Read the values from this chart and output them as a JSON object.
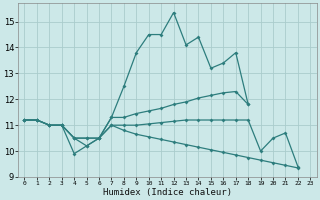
{
  "xlabel": "Humidex (Indice chaleur)",
  "bg_color": "#cce8e8",
  "grid_color": "#aacccc",
  "line_color": "#2d7d7d",
  "xlim": [
    -0.5,
    23.5
  ],
  "ylim": [
    9.0,
    15.7
  ],
  "yticks": [
    9,
    10,
    11,
    12,
    13,
    14,
    15
  ],
  "xticks": [
    0,
    1,
    2,
    3,
    4,
    5,
    6,
    7,
    8,
    9,
    10,
    11,
    12,
    13,
    14,
    15,
    16,
    17,
    18,
    19,
    20,
    21,
    22,
    23
  ],
  "lines": [
    {
      "x": [
        0,
        1,
        2,
        3,
        4,
        5,
        6,
        7,
        8,
        9,
        10,
        11,
        12,
        13,
        14,
        15,
        16,
        17,
        18
      ],
      "y": [
        11.2,
        11.2,
        11.0,
        11.0,
        10.5,
        10.2,
        10.5,
        11.3,
        12.5,
        13.8,
        14.5,
        14.5,
        15.35,
        14.1,
        14.4,
        13.2,
        13.4,
        13.8,
        11.8
      ]
    },
    {
      "x": [
        0,
        1,
        2,
        3,
        4,
        5,
        6,
        7,
        8,
        9,
        10,
        11,
        12,
        13,
        14,
        15,
        16,
        17,
        18
      ],
      "y": [
        11.2,
        11.2,
        11.0,
        11.0,
        9.9,
        10.2,
        10.5,
        11.3,
        11.3,
        11.45,
        11.55,
        11.65,
        11.8,
        11.9,
        12.05,
        12.15,
        12.25,
        12.3,
        11.8
      ]
    },
    {
      "x": [
        0,
        1,
        2,
        3,
        4,
        5,
        6,
        7,
        8,
        9,
        10,
        11,
        12,
        13,
        14,
        15,
        16,
        17,
        18,
        19,
        20,
        21,
        22
      ],
      "y": [
        11.2,
        11.2,
        11.0,
        11.0,
        10.5,
        10.5,
        10.5,
        11.0,
        11.0,
        11.0,
        11.05,
        11.1,
        11.15,
        11.2,
        11.2,
        11.2,
        11.2,
        11.2,
        11.2,
        10.0,
        10.5,
        10.7,
        9.4
      ]
    },
    {
      "x": [
        0,
        1,
        2,
        3,
        4,
        5,
        6,
        7,
        8,
        9,
        10,
        11,
        12,
        13,
        14,
        15,
        16,
        17,
        18,
        19,
        20,
        21,
        22
      ],
      "y": [
        11.2,
        11.2,
        11.0,
        11.0,
        10.5,
        10.5,
        10.5,
        11.0,
        10.8,
        10.65,
        10.55,
        10.45,
        10.35,
        10.25,
        10.15,
        10.05,
        9.95,
        9.85,
        9.75,
        9.65,
        9.55,
        9.45,
        9.35
      ]
    }
  ]
}
